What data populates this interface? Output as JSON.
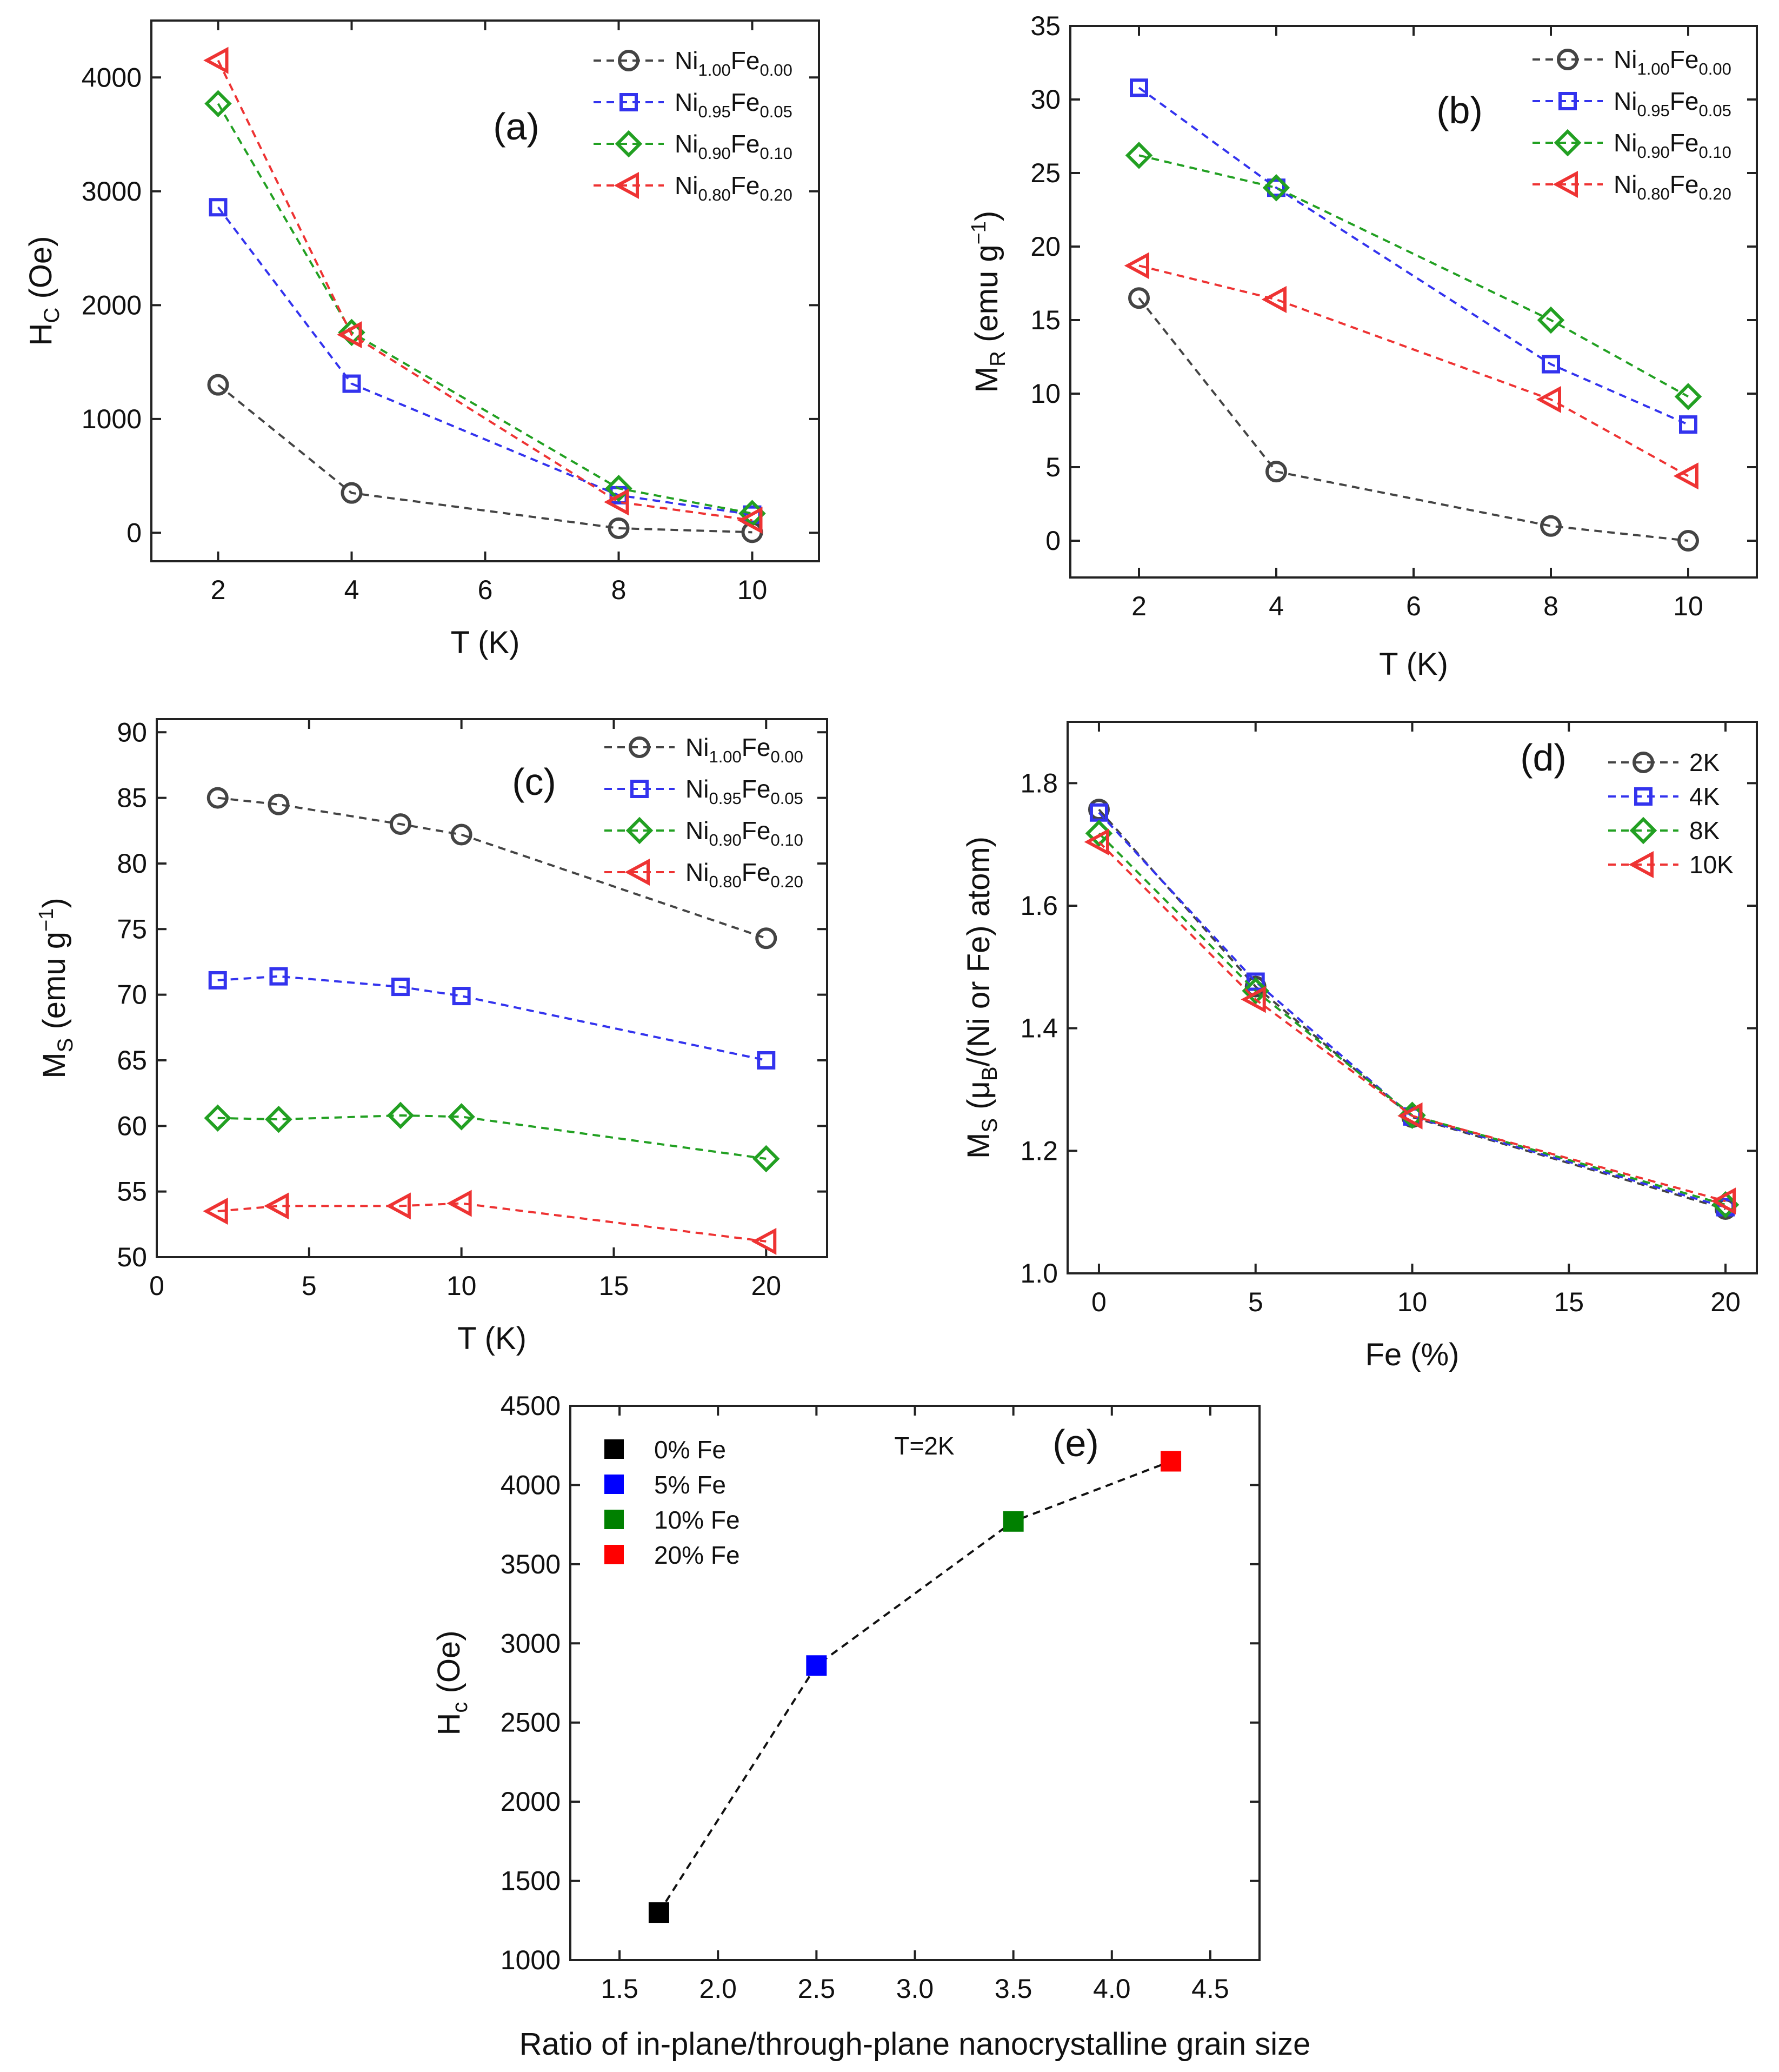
{
  "chart_data": [
    {
      "panel": "(a)",
      "type": "line",
      "xlabel": "T (K)",
      "ylabel_main": "H",
      "ylabel_sub": "C",
      "ylabel_rest": " (Oe)",
      "xlim": [
        1,
        11
      ],
      "ylim": [
        -250,
        4500
      ],
      "xticks": [
        2,
        4,
        6,
        8,
        10
      ],
      "yticks": [
        0,
        1000,
        2000,
        3000,
        4000
      ],
      "x": [
        2,
        4,
        8,
        10
      ],
      "series": [
        {
          "name": "Ni1.00Fe0.00",
          "base1": "Ni",
          "sub1": "1.00",
          "base2": "Fe",
          "sub2": "0.00",
          "marker": "circle",
          "color": "#444444",
          "values": [
            1300,
            350,
            40,
            5
          ]
        },
        {
          "name": "Ni0.95Fe0.05",
          "base1": "Ni",
          "sub1": "0.95",
          "base2": "Fe",
          "sub2": "0.05",
          "marker": "square",
          "color": "#3333ee",
          "values": [
            2860,
            1310,
            330,
            160
          ]
        },
        {
          "name": "Ni0.90Fe0.10",
          "base1": "Ni",
          "sub1": "0.90",
          "base2": "Fe",
          "sub2": "0.10",
          "marker": "diamond",
          "color": "#22a022",
          "values": [
            3770,
            1760,
            390,
            170
          ]
        },
        {
          "name": "Ni0.80Fe0.20",
          "base1": "Ni",
          "sub1": "0.80",
          "base2": "Fe",
          "sub2": "0.20",
          "marker": "triangle-left",
          "color": "#ee3333",
          "values": [
            4150,
            1740,
            270,
            110
          ]
        }
      ]
    },
    {
      "panel": "(b)",
      "type": "line",
      "xlabel": "T (K)",
      "ylabel_main": "M",
      "ylabel_sub": "R",
      "ylabel_rest": " (emu g",
      "ylabel_sup": "−1",
      "ylabel_end": ")",
      "xlim": [
        1,
        11
      ],
      "ylim": [
        -2.5,
        35
      ],
      "xticks": [
        2,
        4,
        6,
        8,
        10
      ],
      "yticks": [
        0,
        5,
        10,
        15,
        20,
        25,
        30,
        35
      ],
      "x": [
        2,
        4,
        8,
        10
      ],
      "series": [
        {
          "name": "Ni1.00Fe0.00",
          "base1": "Ni",
          "sub1": "1.00",
          "base2": "Fe",
          "sub2": "0.00",
          "marker": "circle",
          "color": "#444444",
          "values": [
            16.5,
            4.7,
            1.0,
            0.0
          ]
        },
        {
          "name": "Ni0.95Fe0.05",
          "base1": "Ni",
          "sub1": "0.95",
          "base2": "Fe",
          "sub2": "0.05",
          "marker": "square",
          "color": "#3333ee",
          "values": [
            30.8,
            24.0,
            12.0,
            7.9
          ]
        },
        {
          "name": "Ni0.90Fe0.10",
          "base1": "Ni",
          "sub1": "0.90",
          "base2": "Fe",
          "sub2": "0.10",
          "marker": "diamond",
          "color": "#22a022",
          "values": [
            26.2,
            24.0,
            15.0,
            9.8
          ]
        },
        {
          "name": "Ni0.80Fe0.20",
          "base1": "Ni",
          "sub1": "0.80",
          "base2": "Fe",
          "sub2": "0.20",
          "marker": "triangle-left",
          "color": "#ee3333",
          "values": [
            18.7,
            16.4,
            9.6,
            4.4
          ]
        }
      ]
    },
    {
      "panel": "(c)",
      "type": "line",
      "xlabel": "T (K)",
      "ylabel_main": "M",
      "ylabel_sub": "S",
      "ylabel_rest": " (emu g",
      "ylabel_sup": "−1",
      "ylabel_end": ")",
      "xlim": [
        0,
        22
      ],
      "ylim": [
        50,
        91
      ],
      "xticks": [
        0,
        5,
        10,
        15,
        20
      ],
      "yticks": [
        50,
        55,
        60,
        65,
        70,
        75,
        80,
        85,
        90
      ],
      "x": [
        2,
        4,
        8,
        10,
        20
      ],
      "series": [
        {
          "name": "Ni1.00Fe0.00",
          "base1": "Ni",
          "sub1": "1.00",
          "base2": "Fe",
          "sub2": "0.00",
          "marker": "circle",
          "color": "#444444",
          "values": [
            85.0,
            84.5,
            83.0,
            82.2,
            74.3
          ]
        },
        {
          "name": "Ni0.95Fe0.05",
          "base1": "Ni",
          "sub1": "0.95",
          "base2": "Fe",
          "sub2": "0.05",
          "marker": "square",
          "color": "#3333ee",
          "values": [
            71.1,
            71.4,
            70.6,
            69.9,
            65.0
          ]
        },
        {
          "name": "Ni0.90Fe0.10",
          "base1": "Ni",
          "sub1": "0.90",
          "base2": "Fe",
          "sub2": "0.10",
          "marker": "diamond",
          "color": "#22a022",
          "values": [
            60.6,
            60.5,
            60.8,
            60.7,
            57.5
          ]
        },
        {
          "name": "Ni0.80Fe0.20",
          "base1": "Ni",
          "sub1": "0.80",
          "base2": "Fe",
          "sub2": "0.20",
          "marker": "triangle-left",
          "color": "#ee3333",
          "values": [
            53.5,
            53.9,
            53.9,
            54.1,
            51.2
          ]
        }
      ]
    },
    {
      "panel": "(d)",
      "type": "line",
      "xlabel": "Fe (%)",
      "ylabel_main": "M",
      "ylabel_sub": "S",
      "ylabel_rest": " (μ",
      "ylabel_sub2": "B",
      "ylabel_end": "/(Ni or Fe) atom)",
      "xlim": [
        -1,
        21
      ],
      "ylim": [
        1.0,
        1.9
      ],
      "xticks": [
        0,
        5,
        10,
        15,
        20
      ],
      "yticks": [
        1.0,
        1.2,
        1.4,
        1.6,
        1.8
      ],
      "x": [
        0,
        5,
        10,
        20
      ],
      "series": [
        {
          "name": "2K",
          "marker": "circle",
          "color": "#444444",
          "values": [
            1.757,
            1.468,
            1.255,
            1.105
          ]
        },
        {
          "name": "4K",
          "marker": "square",
          "color": "#3333ee",
          "values": [
            1.752,
            1.476,
            1.256,
            1.108
          ]
        },
        {
          "name": "8K",
          "marker": "diamond",
          "color": "#22a022",
          "values": [
            1.718,
            1.461,
            1.258,
            1.112
          ]
        },
        {
          "name": "10K",
          "marker": "triangle-left",
          "color": "#ee3333",
          "values": [
            1.704,
            1.447,
            1.257,
            1.118
          ]
        }
      ]
    },
    {
      "panel": "(e)",
      "type": "scatter",
      "xlabel": "Ratio of in-plane/through-plane nanocrystalline grain size",
      "ylabel_main": "H",
      "ylabel_sub": "c",
      "ylabel_rest": " (Oe)",
      "annotation": "T=2K",
      "xlim": [
        1.25,
        4.75
      ],
      "ylim": [
        1000,
        4500
      ],
      "xticks": [
        1.5,
        2.0,
        2.5,
        3.0,
        3.5,
        4.0,
        4.5
      ],
      "yticks": [
        1000,
        1500,
        2000,
        2500,
        3000,
        3500,
        4000,
        4500
      ],
      "x": [
        1.7,
        2.5,
        3.5,
        4.3
      ],
      "values": [
        1300,
        2860,
        3770,
        4150
      ],
      "labels": [
        "0% Fe",
        "5% Fe",
        "10% Fe",
        "20% Fe"
      ],
      "colors": [
        "#000000",
        "#0000ff",
        "#008000",
        "#ff0000"
      ]
    }
  ]
}
